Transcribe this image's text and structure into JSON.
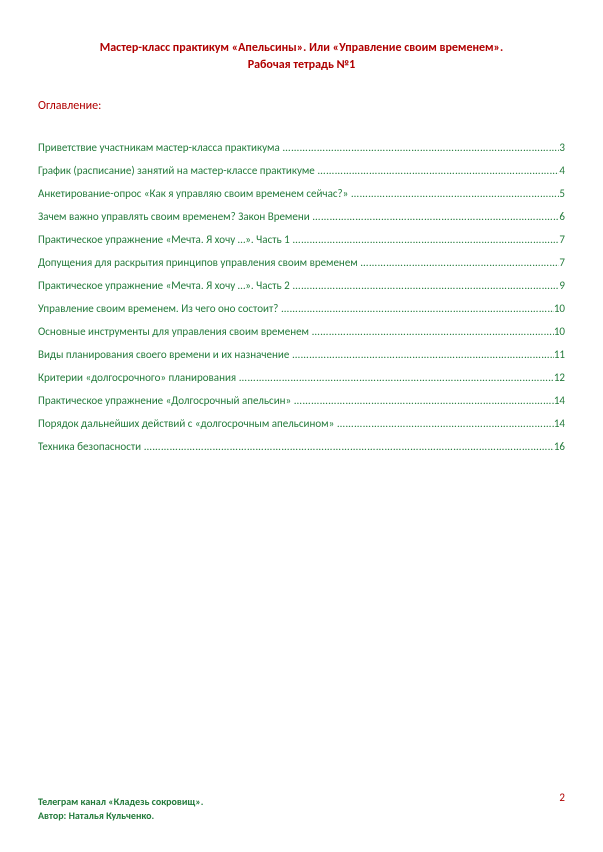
{
  "title": {
    "line1": "Мастер-класс практикум «Апельсины». Или «Управление своим временем».",
    "line2": "Рабочая тетрадь №1"
  },
  "toc_heading": "Оглавление:",
  "toc": [
    {
      "text": "Приветствие участникам мастер-класса практикума",
      "page": "3"
    },
    {
      "text": "График (расписание) занятий на мастер-классе практикуме",
      "page": "4"
    },
    {
      "text": "Анкетирование-опрос «Как я управляю своим временем сейчас?»",
      "page": "5"
    },
    {
      "text": "Зачем важно управлять своим временем? Закон Времени",
      "page": "6"
    },
    {
      "text": "Практическое упражнение «Мечта. Я хочу …». Часть 1",
      "page": "7"
    },
    {
      "text": "Допущения для раскрытия принципов управления своим временем",
      "page": "7"
    },
    {
      "text": "Практическое упражнение «Мечта. Я хочу …». Часть 2",
      "page": "9"
    },
    {
      "text": "Управление своим временем. Из чего оно состоит?",
      "page": "10"
    },
    {
      "text": "Основные инструменты для управления своим временем",
      "page": "10"
    },
    {
      "text": "Виды планирования своего времени и их назначение",
      "page": "11"
    },
    {
      "text": "Критерии «долгосрочного» планирования",
      "page": "12"
    },
    {
      "text": "Практическое упражнение «Долгосрочный апельсин»",
      "page": "14"
    },
    {
      "text": "Порядок дальнейших действий с «долгосрочным апельсином»",
      "page": "14"
    },
    {
      "text": "Техника безопасности",
      "page": "16"
    }
  ],
  "footer": {
    "line1": "Телеграм канал «Кладезь сокровищ».",
    "line2": "Автор: Наталья Кульченко."
  },
  "page_number": "2",
  "colors": {
    "red": "#b00000",
    "green": "#237a3b",
    "bg": "#ffffff"
  }
}
